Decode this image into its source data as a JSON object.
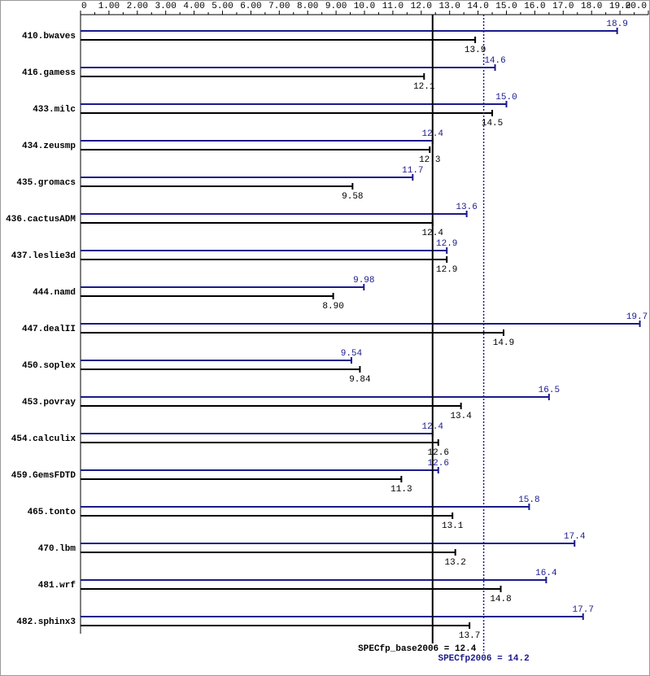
{
  "chart_data": {
    "type": "bar",
    "orientation": "horizontal",
    "categories": [
      "410.bwaves",
      "416.gamess",
      "433.milc",
      "434.zeusmp",
      "435.gromacs",
      "436.cactusADM",
      "437.leslie3d",
      "444.namd",
      "447.dealII",
      "450.soplex",
      "453.povray",
      "454.calculix",
      "459.GemsFDTD",
      "465.tonto",
      "470.lbm",
      "481.wrf",
      "482.sphinx3"
    ],
    "series": [
      {
        "color": "#1a1a8c",
        "values": [
          18.9,
          14.6,
          15.0,
          12.4,
          11.7,
          13.6,
          12.9,
          9.98,
          19.7,
          9.54,
          16.5,
          12.4,
          12.6,
          15.8,
          17.4,
          16.4,
          17.7
        ],
        "value_labels": [
          "18.9",
          "14.6",
          "15.0",
          "12.4",
          "11.7",
          "13.6",
          "12.9",
          "9.98",
          "19.7",
          "9.54",
          "16.5",
          "12.4",
          "12.6",
          "15.8",
          "17.4",
          "16.4",
          "17.7"
        ]
      },
      {
        "color": "#000000",
        "values": [
          13.9,
          12.1,
          14.5,
          12.3,
          9.58,
          12.4,
          12.9,
          8.9,
          14.9,
          9.84,
          13.4,
          12.6,
          11.3,
          13.1,
          13.2,
          14.8,
          13.7
        ],
        "value_labels": [
          "13.9",
          "12.1",
          "14.5",
          "12.3",
          "9.58",
          "12.4",
          "12.9",
          "8.90",
          "14.9",
          "9.84",
          "13.4",
          "12.6",
          "11.3",
          "13.1",
          "13.2",
          "14.8",
          "13.7"
        ]
      }
    ],
    "xlim": [
      0,
      20
    ],
    "xticks": [
      0,
      {
        "value": 1,
        "label": "1.00"
      },
      {
        "value": 2,
        "label": "2.00"
      },
      {
        "value": 3,
        "label": "3.00"
      },
      {
        "value": 4,
        "label": "4.00"
      },
      {
        "value": 5,
        "label": "5.00"
      },
      {
        "value": 6,
        "label": "6.00"
      },
      {
        "value": 7,
        "label": "7.00"
      },
      {
        "value": 8,
        "label": "8.00"
      },
      {
        "value": 9,
        "label": "9.00"
      },
      {
        "value": 10,
        "label": "10.0"
      },
      {
        "value": 11,
        "label": "11.0"
      },
      {
        "value": 12,
        "label": "12.0"
      },
      {
        "value": 13,
        "label": "13.0"
      },
      {
        "value": 14,
        "label": "14.0"
      },
      {
        "value": 15,
        "label": "15.0"
      },
      {
        "value": 16,
        "label": "16.0"
      },
      {
        "value": 17,
        "label": "17.0"
      },
      {
        "value": 18,
        "label": "18.0"
      },
      {
        "value": 19,
        "label": "19.0"
      },
      {
        "value": 20,
        "label": "20.0"
      }
    ],
    "xminorticks": [
      0.5,
      1.5,
      2.5,
      3.5,
      4.5,
      5.5,
      6.5,
      7.5,
      8.5,
      9.5,
      10.5,
      11.5,
      12.5,
      13.5,
      14.5,
      15.5,
      16.5,
      17.5,
      18.5,
      19.5
    ],
    "reference_lines": [
      {
        "label": "SPECfp_base2006 = 12.4",
        "value": 12.4,
        "color": "#000000",
        "style": "solid"
      },
      {
        "label": "SPECfp2006 = 14.2",
        "value": 14.2,
        "color": "#1a1a8c",
        "style": "dotted"
      }
    ]
  }
}
